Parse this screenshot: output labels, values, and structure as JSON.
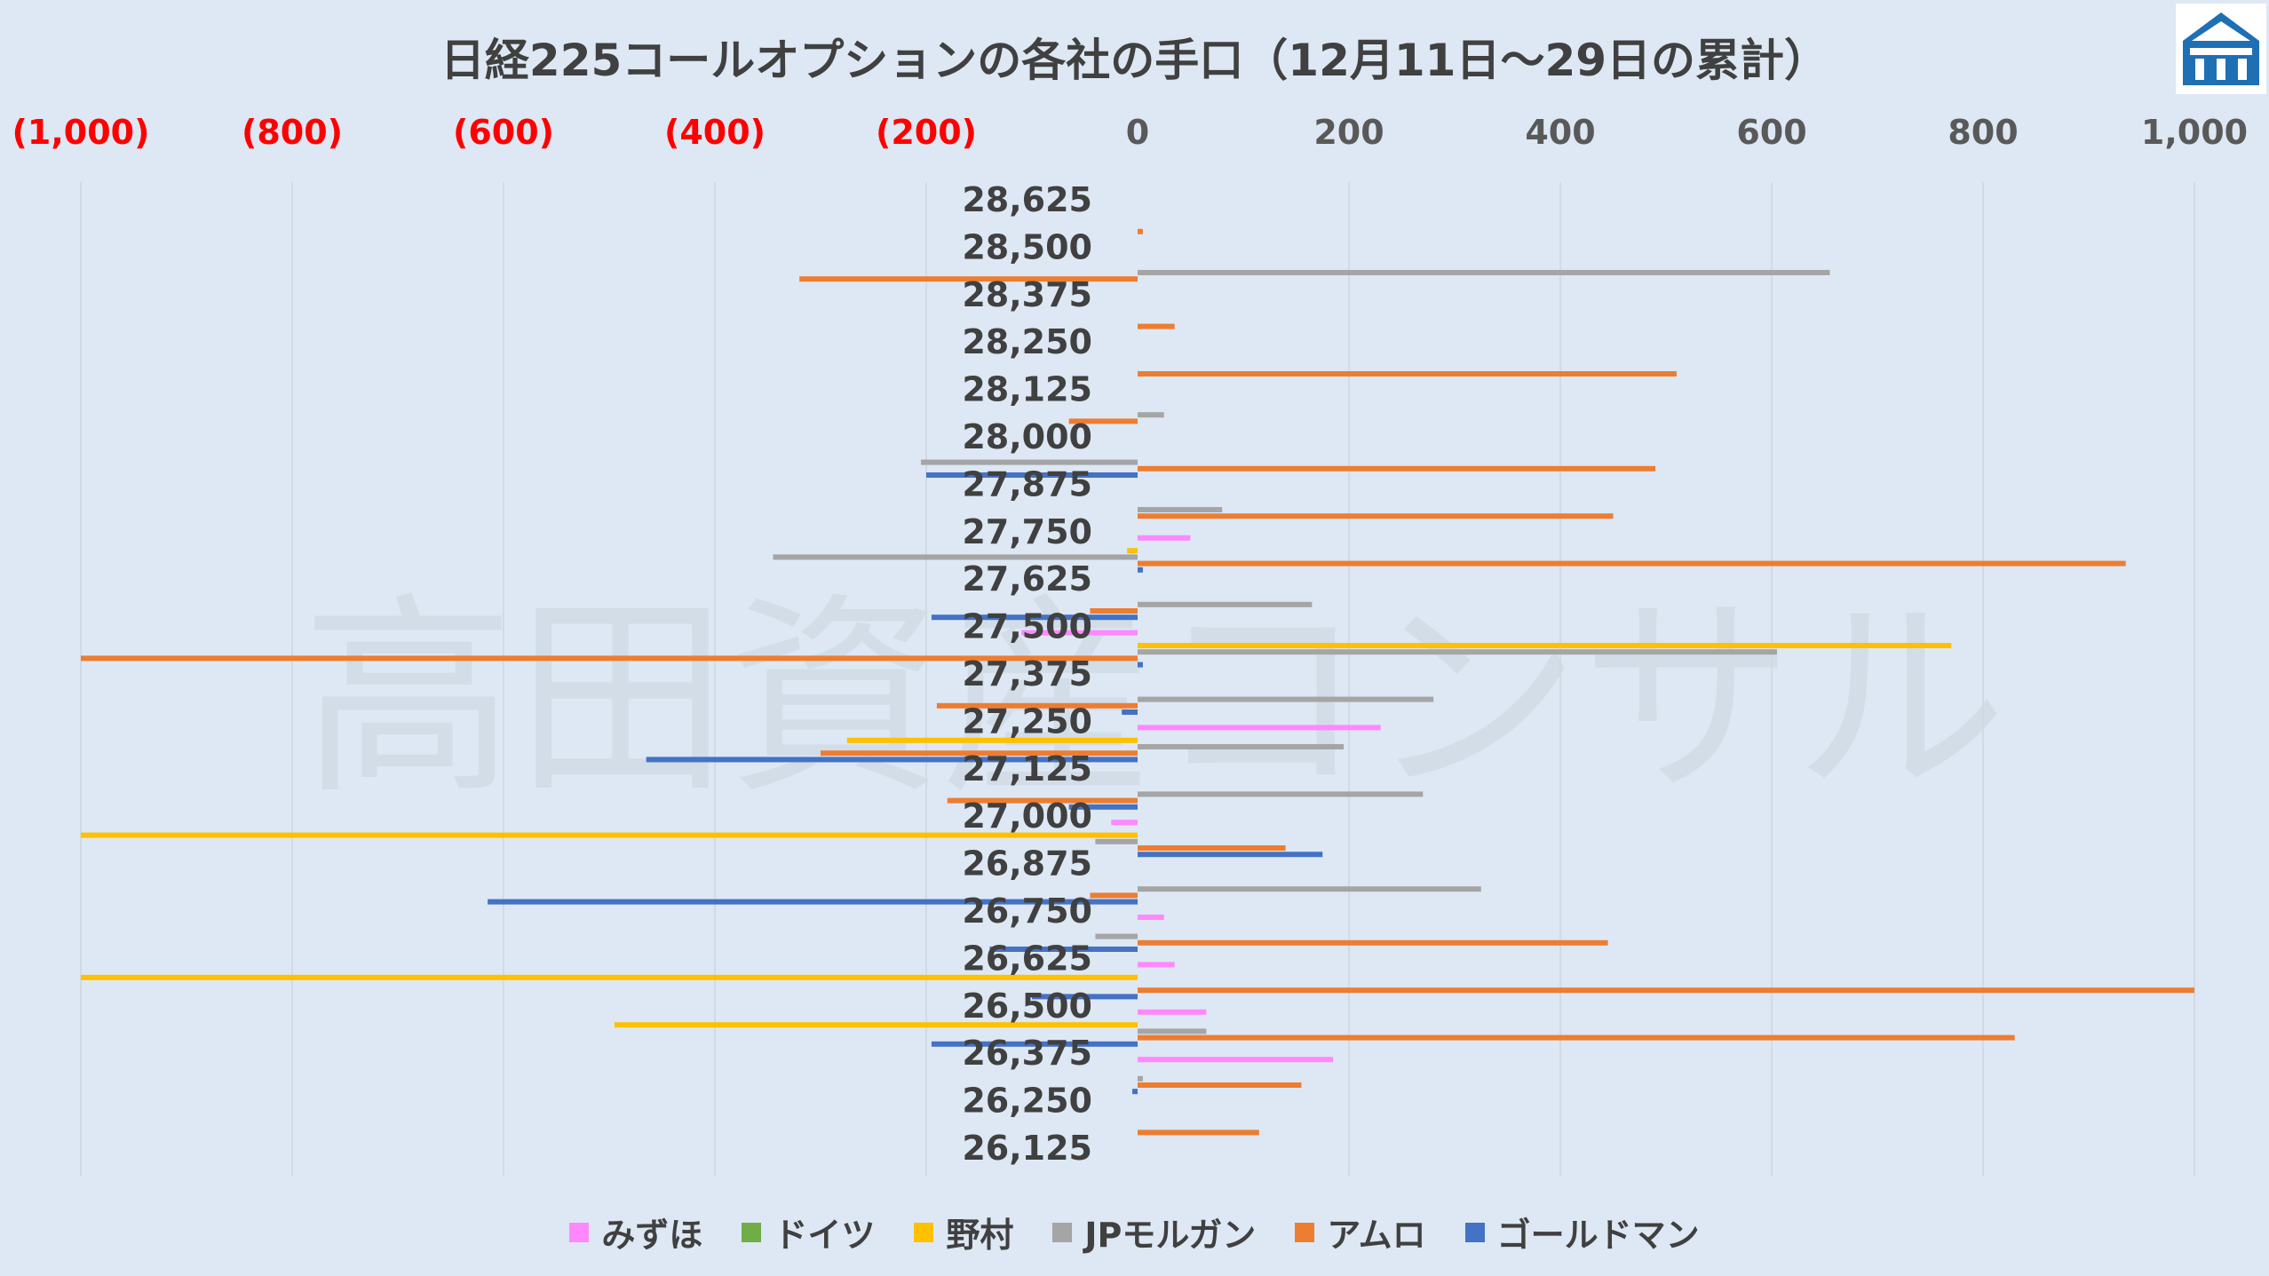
{
  "chart_data": {
    "type": "bar",
    "orientation": "horizontal",
    "title": "日経225コールオプションの各社の手口（12月11日～29日の累計）",
    "watermark": "高田資産コンサル",
    "xlim": [
      -1000,
      1000
    ],
    "x_ticks": [
      {
        "value": -1000,
        "label": "(1,000)"
      },
      {
        "value": -800,
        "label": "(800)"
      },
      {
        "value": -600,
        "label": "(600)"
      },
      {
        "value": -400,
        "label": "(400)"
      },
      {
        "value": -200,
        "label": "(200)"
      },
      {
        "value": 0,
        "label": "0"
      },
      {
        "value": 200,
        "label": "200"
      },
      {
        "value": 400,
        "label": "400"
      },
      {
        "value": 600,
        "label": "600"
      },
      {
        "value": 800,
        "label": "800"
      },
      {
        "value": 1000,
        "label": "1,000"
      }
    ],
    "negative_tick_color": "#ff0000",
    "positive_tick_color": "#595959",
    "categories": [
      "28,625",
      "28,500",
      "28,375",
      "28,250",
      "28,125",
      "28,000",
      "27,875",
      "27,750",
      "27,625",
      "27,500",
      "27,375",
      "27,250",
      "27,125",
      "27,000",
      "26,875",
      "26,750",
      "26,625",
      "26,500",
      "26,375",
      "26,250",
      "26,125"
    ],
    "series": [
      {
        "name": "みずほ",
        "color": "#ff88ff",
        "values": [
          0,
          0,
          0,
          0,
          0,
          0,
          0,
          50,
          0,
          -110,
          0,
          230,
          0,
          -25,
          0,
          25,
          35,
          65,
          185,
          0,
          0
        ]
      },
      {
        "name": "ドイツ",
        "color": "#70ad47",
        "values": [
          0,
          0,
          0,
          0,
          0,
          0,
          0,
          0,
          0,
          0,
          0,
          0,
          0,
          0,
          0,
          0,
          0,
          0,
          0,
          0,
          0
        ]
      },
      {
        "name": "野村",
        "color": "#ffc000",
        "values": [
          0,
          0,
          0,
          0,
          0,
          0,
          0,
          -10,
          0,
          770,
          0,
          -275,
          0,
          -1000,
          0,
          0,
          -1000,
          -495,
          0,
          0,
          0
        ]
      },
      {
        "name": "JPモルガン",
        "color": "#a5a5a5",
        "values": [
          0,
          655,
          0,
          0,
          25,
          -205,
          80,
          -345,
          165,
          605,
          280,
          195,
          270,
          -40,
          325,
          -40,
          0,
          65,
          5,
          0,
          0
        ]
      },
      {
        "name": "アムロ",
        "color": "#ed7d31",
        "values": [
          5,
          -320,
          35,
          510,
          -65,
          490,
          450,
          935,
          -45,
          -1000,
          -190,
          -300,
          -180,
          140,
          -45,
          445,
          1000,
          830,
          155,
          115,
          0
        ]
      },
      {
        "name": "ゴールドマン",
        "color": "#4472c4",
        "values": [
          0,
          0,
          0,
          0,
          0,
          -200,
          0,
          5,
          -195,
          5,
          -15,
          -465,
          -65,
          175,
          -615,
          -140,
          -100,
          -195,
          -5,
          0,
          0
        ]
      }
    ]
  },
  "legend": [
    {
      "label": "みずほ",
      "color": "#ff88ff"
    },
    {
      "label": "ドイツ",
      "color": "#70ad47"
    },
    {
      "label": "野村",
      "color": "#ffc000"
    },
    {
      "label": "JPモルガン",
      "color": "#a5a5a5"
    },
    {
      "label": "アムロ",
      "color": "#ed7d31"
    },
    {
      "label": "ゴールドマン",
      "color": "#4472c4"
    }
  ],
  "logo_icon": "shrine-gate-icon"
}
